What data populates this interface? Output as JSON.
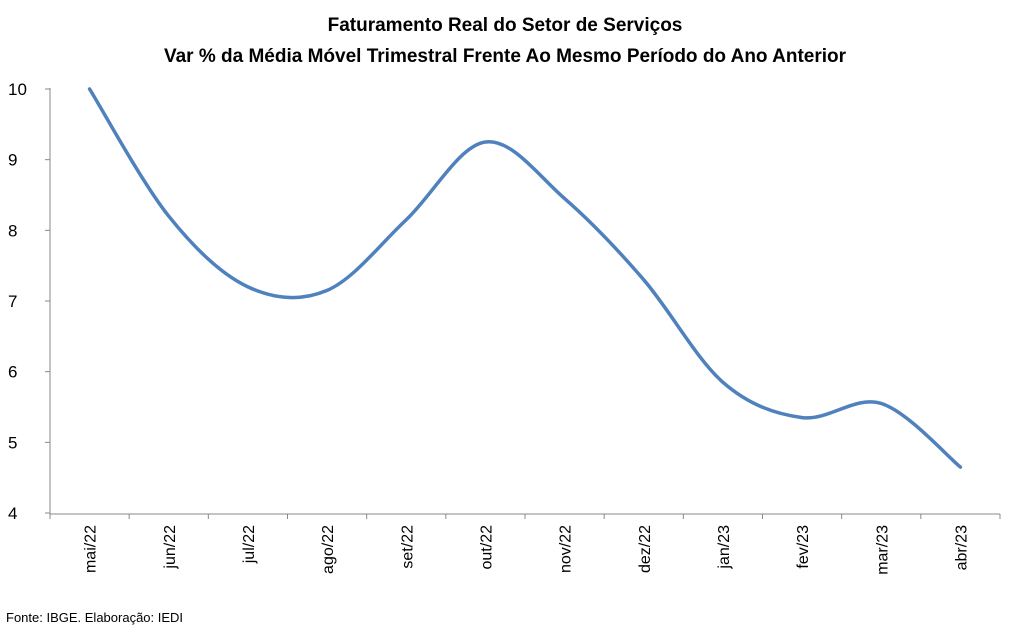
{
  "source_note": "Fonte: IBGE. Elaboração: IEDI",
  "chart_data": {
    "type": "line",
    "title": "Faturamento Real do Setor de Serviços",
    "subtitle": "Var % da Média Móvel Trimestral Frente Ao Mesmo Período do Ano Anterior",
    "xlabel": "",
    "ylabel": "",
    "categories": [
      "mai/22",
      "jun/22",
      "jul/22",
      "ago/22",
      "set/22",
      "out/22",
      "nov/22",
      "dez/22",
      "jan/23",
      "fev/23",
      "mar/23",
      "abr/23"
    ],
    "series": [
      {
        "values": [
          10.0,
          8.2,
          7.2,
          7.15,
          8.15,
          9.25,
          8.45,
          7.3,
          5.85,
          5.35,
          5.55,
          4.65
        ]
      }
    ],
    "ylim": [
      4,
      10
    ],
    "yticks": [
      4,
      5,
      6,
      7,
      8,
      9,
      10
    ],
    "grid": false,
    "legend": "none",
    "line_color": "#4F81BD",
    "axis_color": "#888888"
  }
}
